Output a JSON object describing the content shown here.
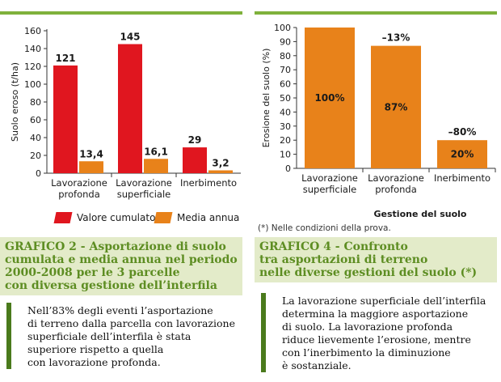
{
  "left_panel": {
    "chart": {
      "type": "bar",
      "categories": [
        [
          "Lavorazione",
          "profonda"
        ],
        [
          "Lavorazione",
          "superficiale"
        ],
        [
          "Inerbimento"
        ]
      ],
      "series": [
        {
          "name": "Valore cumulato",
          "values": [
            121,
            145,
            29
          ],
          "labels": [
            "121",
            "145",
            "29"
          ],
          "color": "#e0161f"
        },
        {
          "name": "Media annua",
          "values": [
            13.4,
            16.1,
            3.2
          ],
          "labels": [
            "13,4",
            "16,1",
            "3,2"
          ],
          "color": "#e8821a"
        }
      ],
      "ylabel": "Suolo eroso (t/ha)",
      "ylim": [
        0,
        160
      ],
      "yticks": [
        0,
        20,
        40,
        60,
        80,
        100,
        120,
        140,
        160
      ],
      "legend_placement": "bottom"
    },
    "caption": {
      "label": "GRAFICO 2 -",
      "lines": [
        " Asportazione di suolo",
        "cumulata e media annua nel periodo",
        "2000-2008 per le 3 parcelle",
        "con diversa gestione dell’interfila"
      ]
    },
    "text_lines": [
      "Nell’83% degli eventi l’asportazione",
      "di terreno dalla parcella con lavorazione",
      "superficiale dell’interfila è stata",
      "superiore rispetto a quella",
      "con lavorazione profonda."
    ]
  },
  "right_panel": {
    "chart": {
      "type": "bar",
      "categories": [
        [
          "Lavorazione",
          "superficiale"
        ],
        [
          "Lavorazione",
          "profonda"
        ],
        [
          "Inerbimento"
        ]
      ],
      "values": [
        100,
        87,
        20
      ],
      "inner_labels": [
        "100%",
        "87%",
        "20%"
      ],
      "top_labels": [
        "",
        "–13%",
        "–80%"
      ],
      "color": "#e8821a",
      "ylabel": "Erosione del suolo (%)",
      "xlabel": "Gestione del suolo",
      "ylim": [
        0,
        100
      ],
      "yticks": [
        0,
        10,
        20,
        30,
        40,
        50,
        60,
        70,
        80,
        90,
        100
      ]
    },
    "note": "(*) Nelle condizioni della prova.",
    "caption": {
      "label": "GRAFICO 4 -",
      "lines": [
        " Confronto",
        "tra asportazioni di terreno",
        "nelle diverse gestioni del suolo (*)"
      ]
    },
    "text_lines": [
      "La lavorazione superficiale dell’interfila",
      "determina la maggiore asportazione",
      "di suolo. La lavorazione profonda",
      "riduce lievemente l’erosione, mentre",
      "con l’inerbimento la diminuzione",
      "è sostanziale."
    ]
  }
}
